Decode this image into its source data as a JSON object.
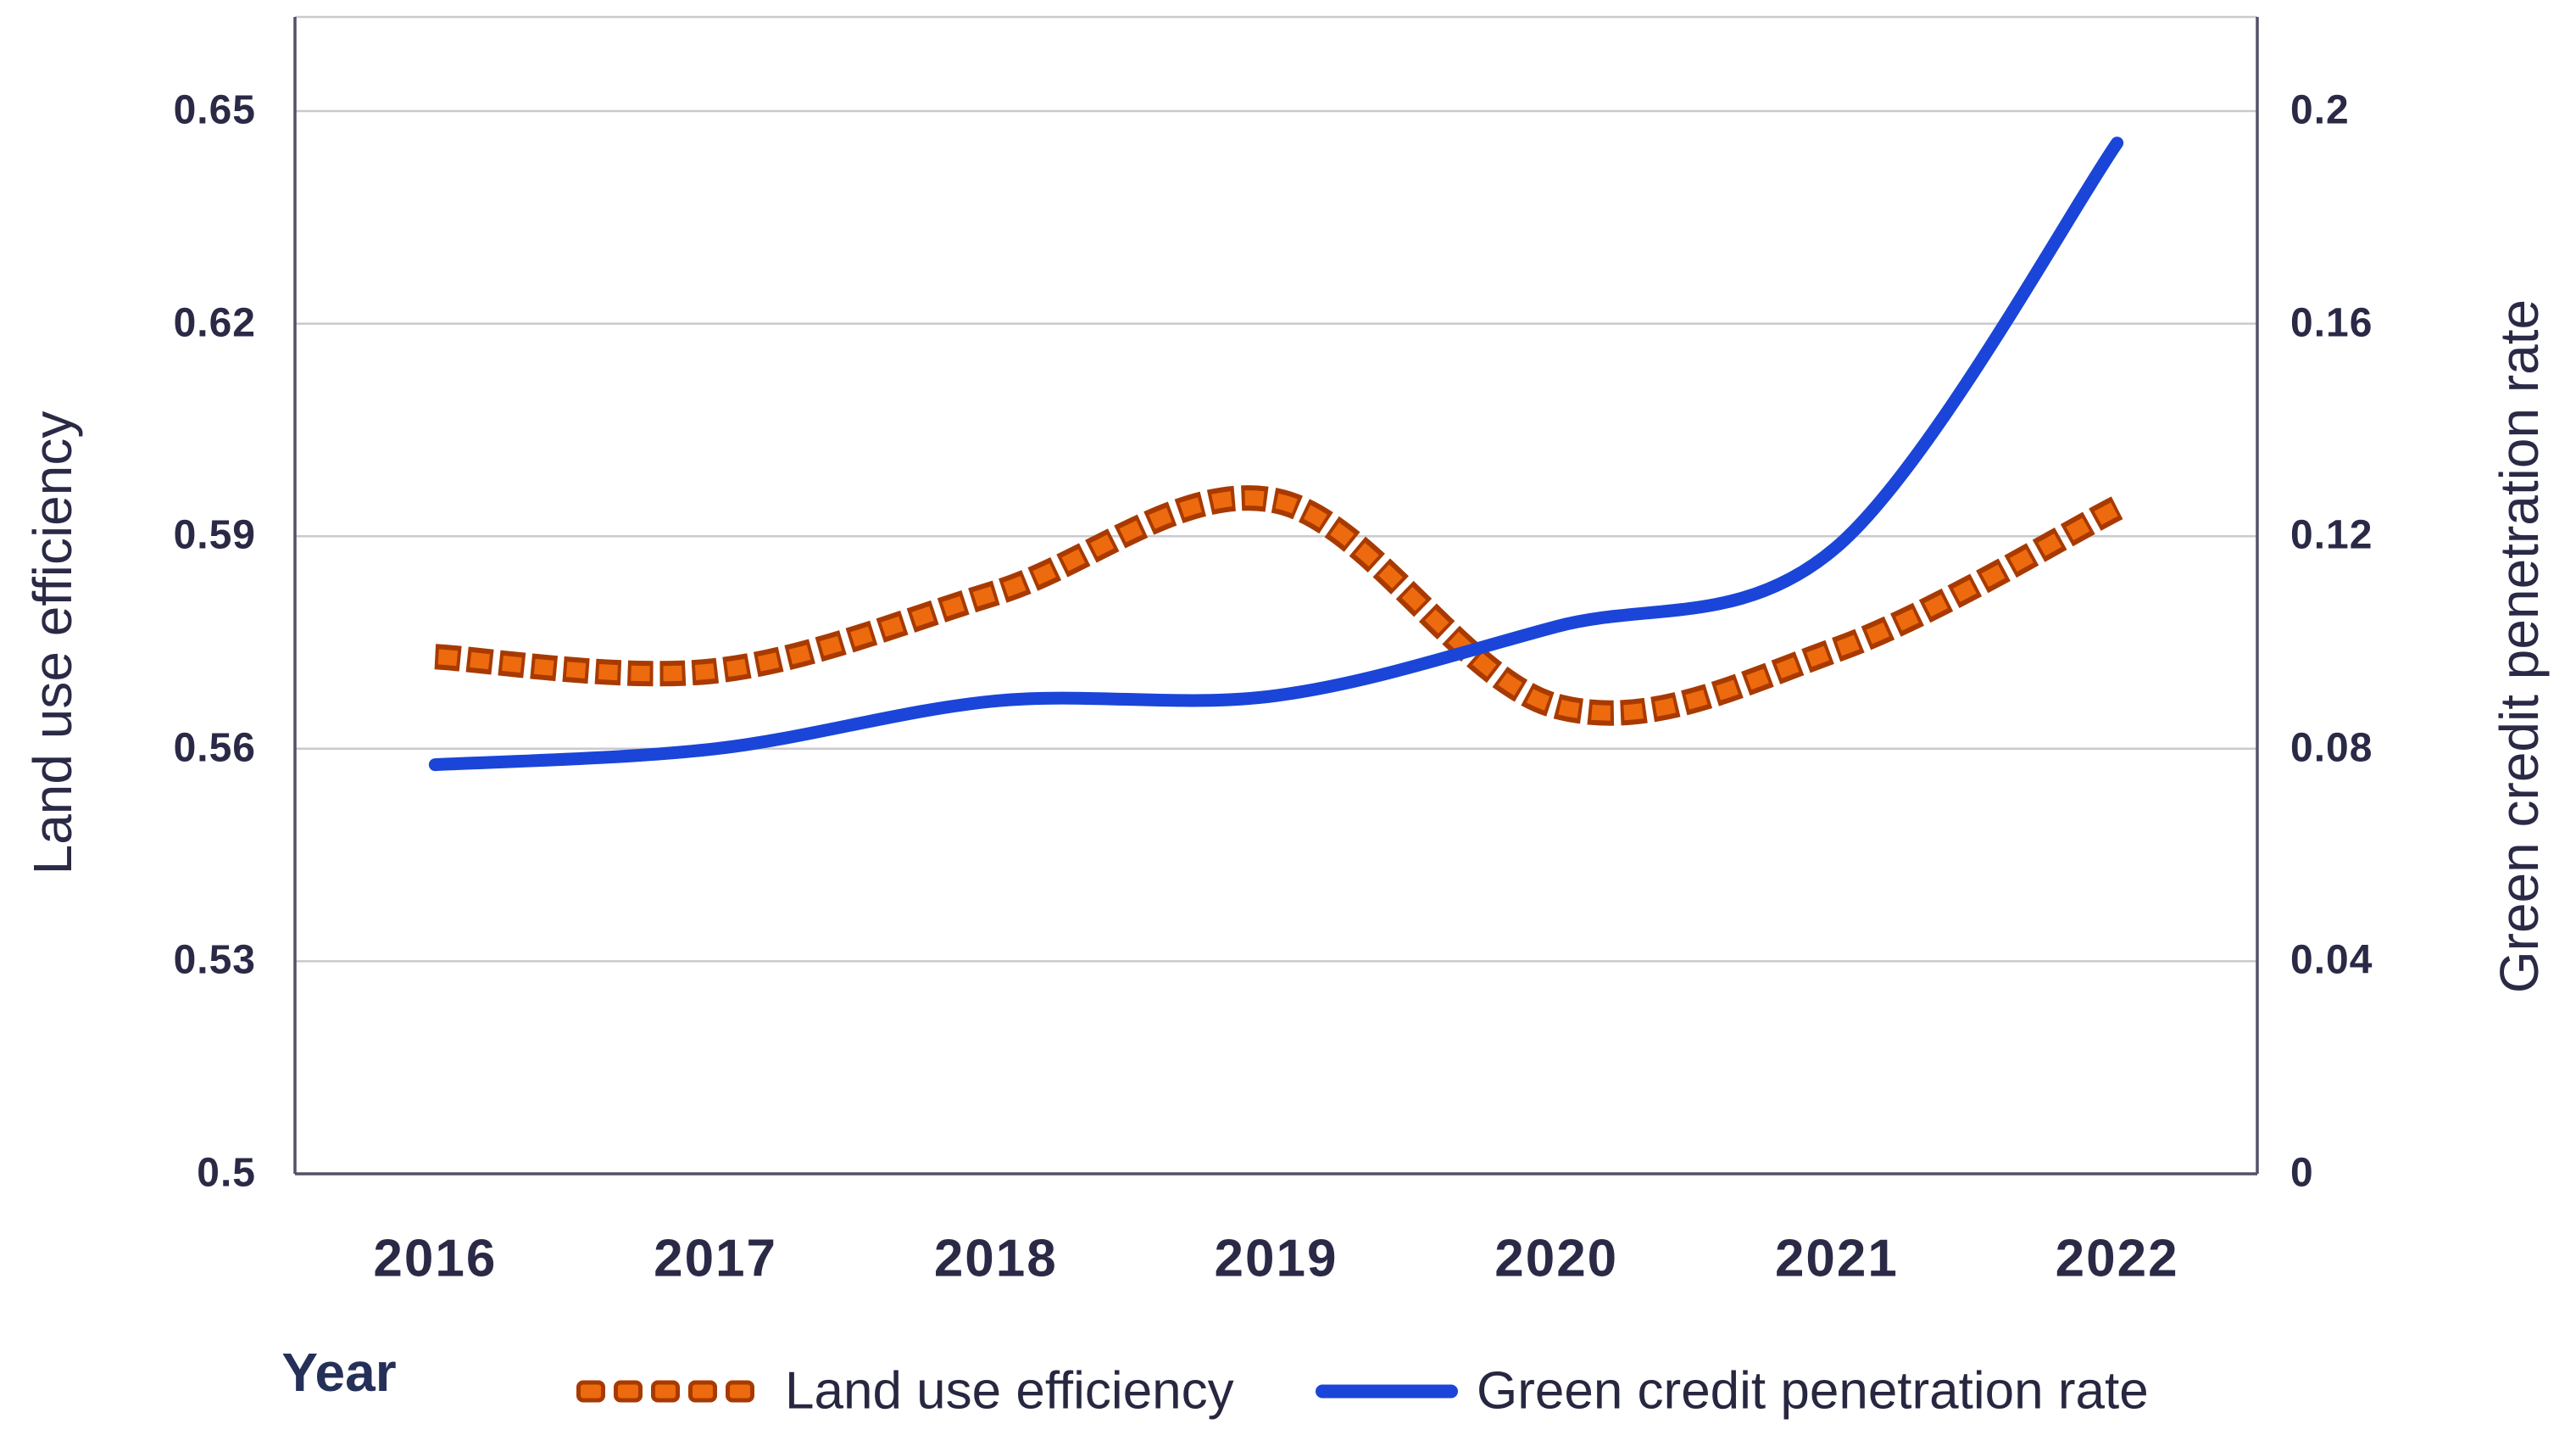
{
  "chart_data": {
    "type": "line",
    "title": "",
    "xlabel": "Year",
    "x_categories": [
      "2016",
      "2017",
      "2018",
      "2019",
      "2020",
      "2021",
      "2022"
    ],
    "left_axis": {
      "label": "Land use efficiency",
      "tick_labels": [
        "0.65",
        "0.62",
        "0.59",
        "0.56",
        "0.53",
        "0.5"
      ],
      "tick_values": [
        0.65,
        0.62,
        0.59,
        0.56,
        0.53,
        0.5
      ],
      "range": [
        0.5,
        0.65
      ]
    },
    "right_axis": {
      "label": "Green credit penetration rate",
      "tick_labels": [
        "0.2",
        "0.16",
        "0.12",
        "0.08",
        "0.04",
        "0"
      ],
      "tick_values": [
        0.2,
        0.16,
        0.12,
        0.08,
        0.04,
        0
      ],
      "range": [
        0,
        0.2
      ]
    },
    "grid": true,
    "legend_position": "bottom",
    "series": [
      {
        "name": "Land use efficiency",
        "axis": "left",
        "line_style": "dotted",
        "color": "#ed6a0e",
        "edge_color": "#a83a00",
        "values": [
          0.573,
          0.571,
          0.582,
          0.595,
          0.566,
          0.574,
          0.594
        ]
      },
      {
        "name": "Green credit penetration rate",
        "axis": "right",
        "line_style": "solid",
        "color": "#1a45d8",
        "values": [
          0.077,
          0.08,
          0.089,
          0.09,
          0.103,
          0.118,
          0.194
        ]
      }
    ]
  },
  "legend": {
    "items": [
      {
        "label": "Land use efficiency",
        "swatch": "orange-dotted"
      },
      {
        "label": "Green credit penetration rate",
        "swatch": "blue-solid"
      }
    ]
  },
  "colors": {
    "gridline": "#cacace",
    "axis_line": "#515168",
    "text": "#2a2a47",
    "orange_fill": "#ed6a0e",
    "orange_edge": "#a83a00",
    "blue": "#1a45d8"
  }
}
